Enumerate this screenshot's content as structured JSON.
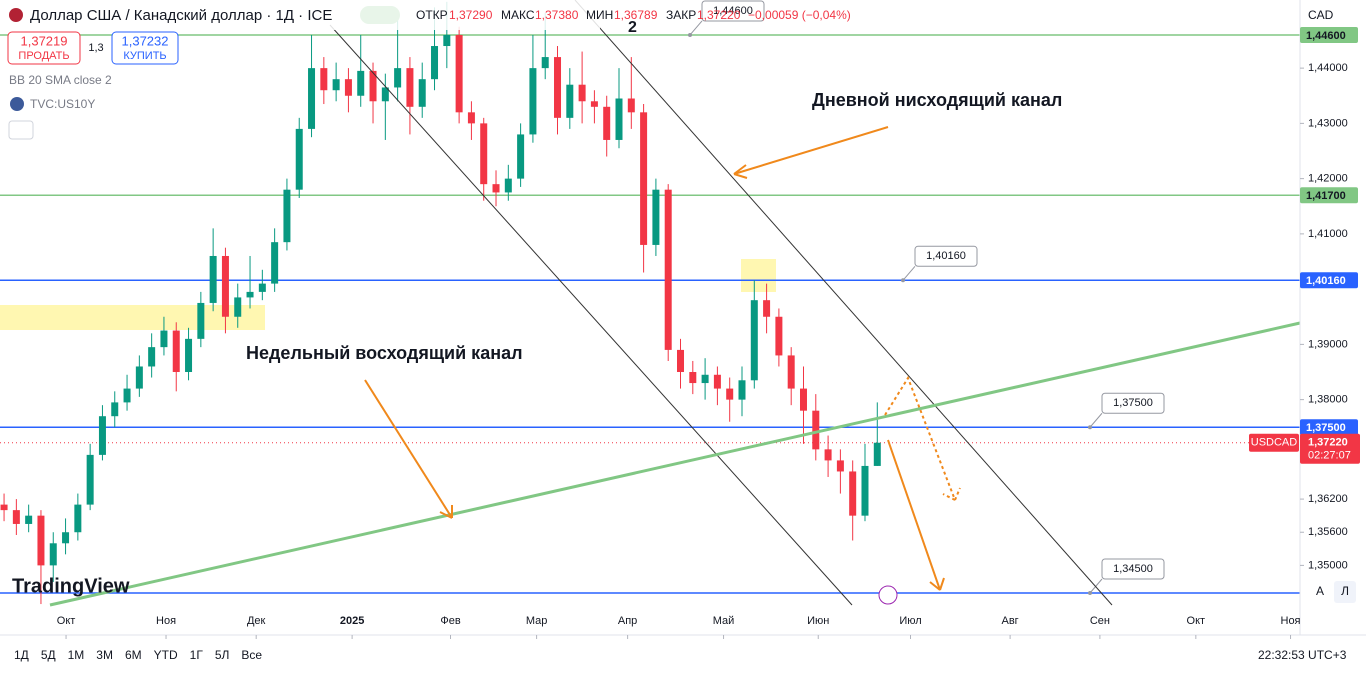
{
  "header": {
    "title": "Доллар США / Канадский доллар · 1Д · ICE",
    "open_label": "ОТКР",
    "open": "1,37290",
    "high_label": "МАКС",
    "high": "1,37380",
    "low_label": "МИН",
    "low": "1,36789",
    "close_label": "ЗАКР",
    "close": "1,37220",
    "change": "−0,00059 (−0,04%)",
    "sell_price": "1,37219",
    "sell": "ПРОДАТЬ",
    "spread": "1,3",
    "buy_price": "1,37232",
    "buy": "КУПИТЬ",
    "indicator": "BB 20 SMA close 2",
    "compare": "TVC:US10Y",
    "currency": "CAD"
  },
  "toolbar": {
    "ranges": [
      "1Д",
      "5Д",
      "1M",
      "3M",
      "6M",
      "YTD",
      "1Г",
      "5Л",
      "Все"
    ],
    "clock": "22:32:53 UTC+3",
    "auto": "A",
    "log": "Л"
  },
  "chart_data": {
    "type": "candlestick",
    "symbol": "USDCAD",
    "countdown": "02:27:07",
    "logo": "TradingView",
    "annotations": [
      "Дневной нисходящий канал",
      "Недельный восходящий канал",
      "2"
    ],
    "up_color": "#089981",
    "down_color": "#f23645",
    "xlim": [
      -0.33,
      105.37
    ],
    "xticks": [
      {
        "value": 5.04,
        "label": "Окт"
      },
      {
        "value": 13.17,
        "label": "Ноя"
      },
      {
        "value": 20.5,
        "label": "Дек"
      },
      {
        "value": 28.3,
        "label": "2025"
      },
      {
        "value": 36.3,
        "label": "Фев"
      },
      {
        "value": 43.3,
        "label": "Мар"
      },
      {
        "value": 50.7,
        "label": "Апр"
      },
      {
        "value": 58.5,
        "label": "Май"
      },
      {
        "value": 66.2,
        "label": "Июн"
      },
      {
        "value": 73.7,
        "label": "Июл"
      },
      {
        "value": 81.8,
        "label": "Авг"
      },
      {
        "value": 89.1,
        "label": "Сен"
      },
      {
        "value": 96.9,
        "label": "Окт"
      },
      {
        "value": 104.6,
        "label": "Ноя"
      }
    ],
    "ylim": [
      1.34283,
      1.45233
    ],
    "yticks": [
      {
        "value": 1.44,
        "label": "1,44000"
      },
      {
        "value": 1.43,
        "label": "1,43000"
      },
      {
        "value": 1.42,
        "label": "1,42000"
      },
      {
        "value": 1.41,
        "label": "1,41000"
      },
      {
        "value": 1.39,
        "label": "1,39000"
      },
      {
        "value": 1.38,
        "label": "1,38000"
      },
      {
        "value": 1.362,
        "label": "1,36200"
      },
      {
        "value": 1.356,
        "label": "1,35600"
      },
      {
        "value": 1.35,
        "label": "1,35000"
      }
    ],
    "levels": [
      {
        "value": 1.446,
        "label": "1,44600",
        "color": "#81c784"
      },
      {
        "value": 1.417,
        "label": "1,41700",
        "color": "#81c784"
      },
      {
        "value": 1.4016,
        "label": "1,40160",
        "color": "#2962ff"
      },
      {
        "value": 1.375,
        "label": "1,37500",
        "color": "#2962ff"
      },
      {
        "value": 1.345,
        "color": "#2962ff"
      }
    ],
    "callouts": [
      {
        "value": 1.446,
        "label": "1,44600"
      },
      {
        "value": 1.4016,
        "label": "1,40160"
      },
      {
        "value": 1.375,
        "label": "1,37500"
      },
      {
        "value": 1.345,
        "label": "1,34500"
      }
    ],
    "last": {
      "value": 1.3722,
      "label": "1,37220"
    },
    "open": [
      1.361,
      1.36,
      1.3575,
      1.359,
      1.35,
      1.354,
      1.356,
      1.361,
      1.37,
      1.377,
      1.3795,
      1.382,
      1.386,
      1.3895,
      1.3925,
      1.385,
      1.391,
      1.3975,
      1.406,
      1.395,
      1.3985,
      1.3995,
      1.401,
      1.4085,
      1.418,
      1.429,
      1.44,
      1.436,
      1.438,
      1.435,
      1.4395,
      1.434,
      1.4365,
      1.44,
      1.433,
      1.438,
      1.444,
      1.446,
      1.432,
      1.43,
      1.419,
      1.4175,
      1.42,
      1.428,
      1.44,
      1.442,
      1.431,
      1.437,
      1.434,
      1.433,
      1.427,
      1.4345,
      1.432,
      1.408,
      1.418,
      1.389,
      1.385,
      1.383,
      1.3845,
      1.382,
      1.38,
      1.3835,
      1.398,
      1.395,
      1.388,
      1.382,
      1.378,
      1.371,
      1.369,
      1.367,
      1.359,
      1.368
    ],
    "high": [
      1.363,
      1.362,
      1.361,
      1.36,
      1.356,
      1.3585,
      1.363,
      1.372,
      1.379,
      1.3815,
      1.3845,
      1.388,
      1.392,
      1.395,
      1.394,
      1.393,
      1.3995,
      1.411,
      1.4075,
      1.401,
      1.406,
      1.4035,
      1.411,
      1.42,
      1.431,
      1.446,
      1.442,
      1.441,
      1.44,
      1.446,
      1.441,
      1.439,
      1.45,
      1.442,
      1.441,
      1.451,
      1.452,
      1.4475,
      1.434,
      1.431,
      1.4215,
      1.4225,
      1.43,
      1.446,
      1.45,
      1.444,
      1.44,
      1.443,
      1.436,
      1.435,
      1.44,
      1.442,
      1.4335,
      1.42,
      1.419,
      1.391,
      1.387,
      1.3875,
      1.386,
      1.384,
      1.386,
      1.4016,
      1.401,
      1.3965,
      1.3895,
      1.386,
      1.381,
      1.3735,
      1.371,
      1.369,
      1.372,
      1.3795
    ],
    "low": [
      1.358,
      1.3555,
      1.356,
      1.343,
      1.347,
      1.352,
      1.3545,
      1.36,
      1.369,
      1.375,
      1.378,
      1.3805,
      1.384,
      1.388,
      1.3815,
      1.3835,
      1.3895,
      1.396,
      1.392,
      1.393,
      1.3965,
      1.398,
      1.3995,
      1.407,
      1.4165,
      1.4275,
      1.4335,
      1.434,
      1.432,
      1.433,
      1.43,
      1.427,
      1.434,
      1.428,
      1.431,
      1.436,
      1.44,
      1.43,
      1.427,
      1.416,
      1.415,
      1.416,
      1.4185,
      1.4265,
      1.438,
      1.428,
      1.429,
      1.43,
      1.43,
      1.424,
      1.4255,
      1.429,
      1.403,
      1.406,
      1.387,
      1.382,
      1.381,
      1.38,
      1.379,
      1.376,
      1.377,
      1.382,
      1.392,
      1.386,
      1.379,
      1.372,
      1.369,
      1.366,
      1.363,
      1.3545,
      1.358,
      1.368
    ],
    "close": [
      1.36,
      1.3575,
      1.359,
      1.35,
      1.354,
      1.356,
      1.361,
      1.37,
      1.377,
      1.3795,
      1.382,
      1.386,
      1.3895,
      1.3925,
      1.385,
      1.391,
      1.3975,
      1.406,
      1.395,
      1.3985,
      1.3995,
      1.401,
      1.4085,
      1.418,
      1.429,
      1.44,
      1.436,
      1.438,
      1.435,
      1.4395,
      1.434,
      1.4365,
      1.44,
      1.433,
      1.438,
      1.444,
      1.446,
      1.432,
      1.43,
      1.419,
      1.4175,
      1.42,
      1.428,
      1.44,
      1.442,
      1.431,
      1.437,
      1.434,
      1.433,
      1.427,
      1.4345,
      1.432,
      1.408,
      1.418,
      1.389,
      1.385,
      1.383,
      1.3845,
      1.382,
      1.38,
      1.3835,
      1.398,
      1.395,
      1.388,
      1.382,
      1.378,
      1.371,
      1.369,
      1.367,
      1.359,
      1.368,
      1.3722
    ]
  }
}
